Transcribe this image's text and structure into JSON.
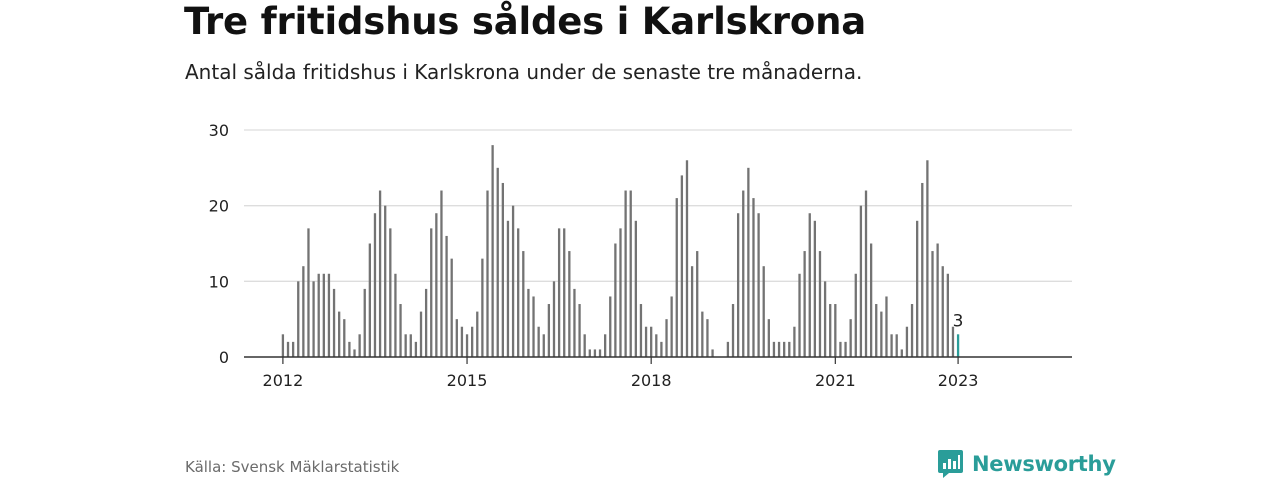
{
  "header": {
    "title": "Tre fritidshus såldes i Karlskrona",
    "subtitle": "Antal sålda fritidshus i Karlskrona under de senaste tre månaderna."
  },
  "footer": {
    "source": "Källa: Svensk Mäklarstatistik",
    "brand": "Newsworthy"
  },
  "colors": {
    "bar": "#737373",
    "highlight": "#2a9d99",
    "grid": "#dddddd",
    "axis": "#333333",
    "text": "#222222"
  },
  "icons": {
    "brand": "newsworthy-logo-icon"
  },
  "chart_data": {
    "type": "bar",
    "title": "Tre fritidshus såldes i Karlskrona",
    "xlabel": "",
    "ylabel": "",
    "ylim": [
      0,
      30
    ],
    "yticks": [
      0,
      10,
      20,
      30
    ],
    "xtick_labels": [
      "2012",
      "2015",
      "2018",
      "2021",
      "2023"
    ],
    "grid": true,
    "legend": "none",
    "start_month": "2012-01",
    "end_month": "2023-01",
    "highlight_month": "2023-01",
    "highlight_label": "3",
    "series": [
      {
        "values": [
          3,
          2,
          2,
          10,
          12,
          17,
          10,
          11,
          11,
          11,
          9,
          6,
          5,
          2,
          1,
          3,
          9,
          15,
          19,
          22,
          20,
          17,
          11,
          7,
          3,
          3,
          2,
          6,
          9,
          17,
          19,
          22,
          16,
          13,
          5,
          4,
          3,
          4,
          6,
          13,
          22,
          28,
          25,
          23,
          18,
          20,
          17,
          14,
          9,
          8,
          4,
          3,
          7,
          10,
          17,
          17,
          14,
          9,
          7,
          3,
          1,
          1,
          1,
          3,
          8,
          15,
          17,
          22,
          22,
          18,
          7,
          4,
          4,
          3,
          2,
          5,
          8,
          21,
          24,
          26,
          12,
          14,
          6,
          5,
          1,
          0,
          0,
          2,
          7,
          19,
          22,
          25,
          21,
          19,
          12,
          5,
          2,
          2,
          2,
          2,
          4,
          11,
          14,
          19,
          18,
          14,
          10,
          7,
          7,
          2,
          2,
          5,
          11,
          20,
          22,
          15,
          7,
          6,
          8,
          3,
          3,
          1,
          4,
          7,
          18,
          23,
          26,
          14,
          15,
          12,
          11,
          4,
          3
        ]
      }
    ]
  }
}
